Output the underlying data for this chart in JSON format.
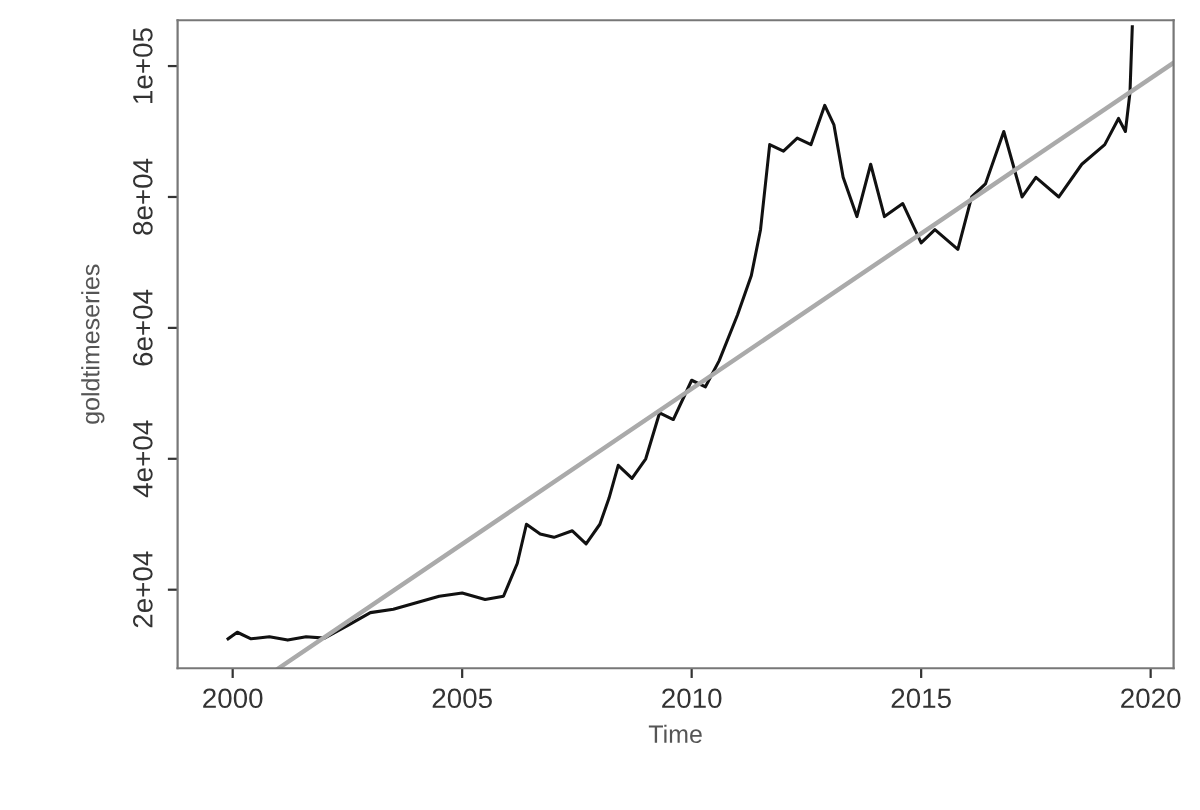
{
  "chart_data": {
    "type": "line",
    "xlabel": "Time",
    "ylabel": "goldtimeseries",
    "xlim": [
      1998.8,
      2020.5
    ],
    "xticks": [
      2000,
      2005,
      2010,
      2015,
      2020
    ],
    "ylim": [
      8000,
      107000
    ],
    "yticks": [
      {
        "value": 20000,
        "label": "2e+04"
      },
      {
        "value": 40000,
        "label": "4e+04"
      },
      {
        "value": 60000,
        "label": "6e+04"
      },
      {
        "value": 80000,
        "label": "8e+04"
      },
      {
        "value": 100000,
        "label": "1e+05"
      }
    ],
    "grid": false,
    "series": [
      {
        "color": "#111111",
        "x": [
          1999.9,
          2000.1,
          2000.4,
          2000.8,
          2001.2,
          2001.6,
          2002.0,
          2002.5,
          2003.0,
          2003.5,
          2004.0,
          2004.5,
          2005.0,
          2005.5,
          2005.9,
          2006.2,
          2006.4,
          2006.7,
          2007.0,
          2007.4,
          2007.7,
          2008.0,
          2008.2,
          2008.4,
          2008.7,
          2009.0,
          2009.3,
          2009.6,
          2010.0,
          2010.3,
          2010.6,
          2011.0,
          2011.3,
          2011.5,
          2011.7,
          2012.0,
          2012.3,
          2012.6,
          2012.9,
          2013.1,
          2013.3,
          2013.6,
          2013.9,
          2014.2,
          2014.6,
          2015.0,
          2015.3,
          2015.8,
          2016.1,
          2016.4,
          2016.8,
          2017.2,
          2017.5,
          2018.0,
          2018.5,
          2019.0,
          2019.3,
          2019.45,
          2019.55,
          2019.6
        ],
        "values": [
          12500,
          13500,
          12500,
          12800,
          12300,
          12800,
          12600,
          14500,
          16500,
          17000,
          18000,
          19000,
          19500,
          18500,
          19000,
          24000,
          30000,
          28500,
          28000,
          29000,
          27000,
          30000,
          34000,
          39000,
          37000,
          40000,
          47000,
          46000,
          52000,
          51000,
          55000,
          62000,
          68000,
          75000,
          88000,
          87000,
          89000,
          88000,
          94000,
          91000,
          83000,
          77000,
          85000,
          77000,
          79000,
          73000,
          75000,
          72000,
          80000,
          82000,
          90000,
          80000,
          83000,
          80000,
          85000,
          88000,
          92000,
          90000,
          96000,
          106000
        ]
      },
      {
        "color": "#aaaaaa",
        "x": [
          2001.0,
          2020.5
        ],
        "values": [
          8000,
          100500
        ]
      }
    ]
  }
}
